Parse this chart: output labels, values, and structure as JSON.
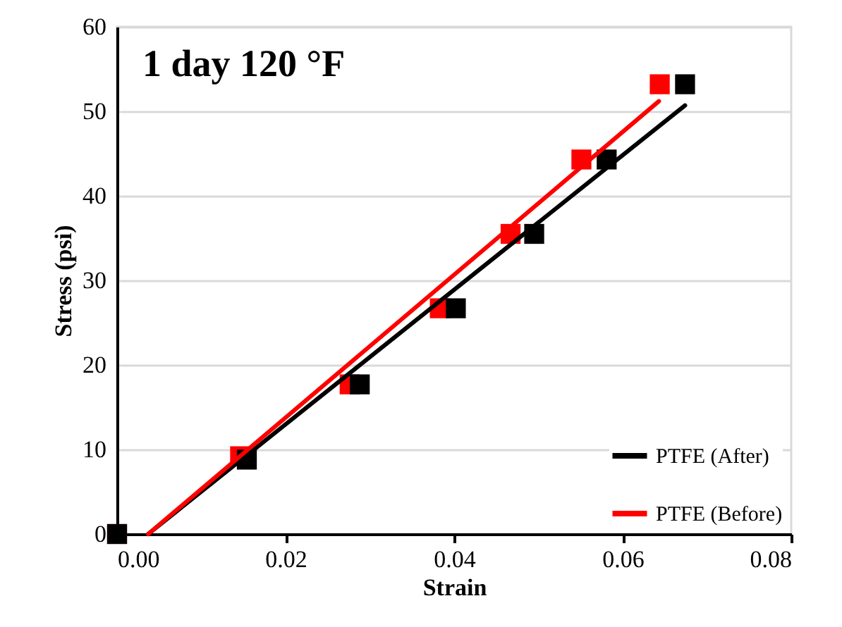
{
  "chart_data": {
    "type": "scatter",
    "title": "1 day 120 °F",
    "xlabel": "Strain",
    "ylabel": "Stress (psi)",
    "xlim": [
      0,
      0.08
    ],
    "xticks": [
      {
        "value": 0,
        "label": "0.00"
      },
      {
        "value": 0.02,
        "label": "0.02"
      },
      {
        "value": 0.04,
        "label": "0.04"
      },
      {
        "value": 0.06,
        "label": "0.06"
      },
      {
        "value": 0.08,
        "label": "0.08"
      }
    ],
    "ylim": [
      0,
      60
    ],
    "yticks": [
      0,
      10,
      20,
      30,
      40,
      50,
      60
    ],
    "grid": "y",
    "legend": "bottom right",
    "series": [
      {
        "marker": "square",
        "color": "#ff0000",
        "x": [
          0,
          0.0146,
          0.0276,
          0.0383,
          0.0467,
          0.0551,
          0.0644
        ],
        "values": [
          0,
          9.2,
          17.7,
          26.7,
          35.5,
          44.3,
          53.2
        ]
      },
      {
        "marker": "square",
        "color": "#000000",
        "x": [
          0,
          0.0154,
          0.0288,
          0.0402,
          0.0495,
          0.0581,
          0.0674
        ],
        "values": [
          0,
          8.8,
          17.7,
          26.7,
          35.5,
          44.3,
          53.2
        ]
      },
      {
        "type": "line",
        "marker": "none",
        "name": "PTFE (After)",
        "color": "#000000",
        "x": [
          0.0037,
          0.0674
        ],
        "values": [
          0,
          50.7
        ]
      },
      {
        "type": "line",
        "marker": "none",
        "name": "PTFE (Before)",
        "color": "#ff0000",
        "x": [
          0.0037,
          0.0643
        ],
        "values": [
          0,
          51.2
        ]
      }
    ]
  }
}
